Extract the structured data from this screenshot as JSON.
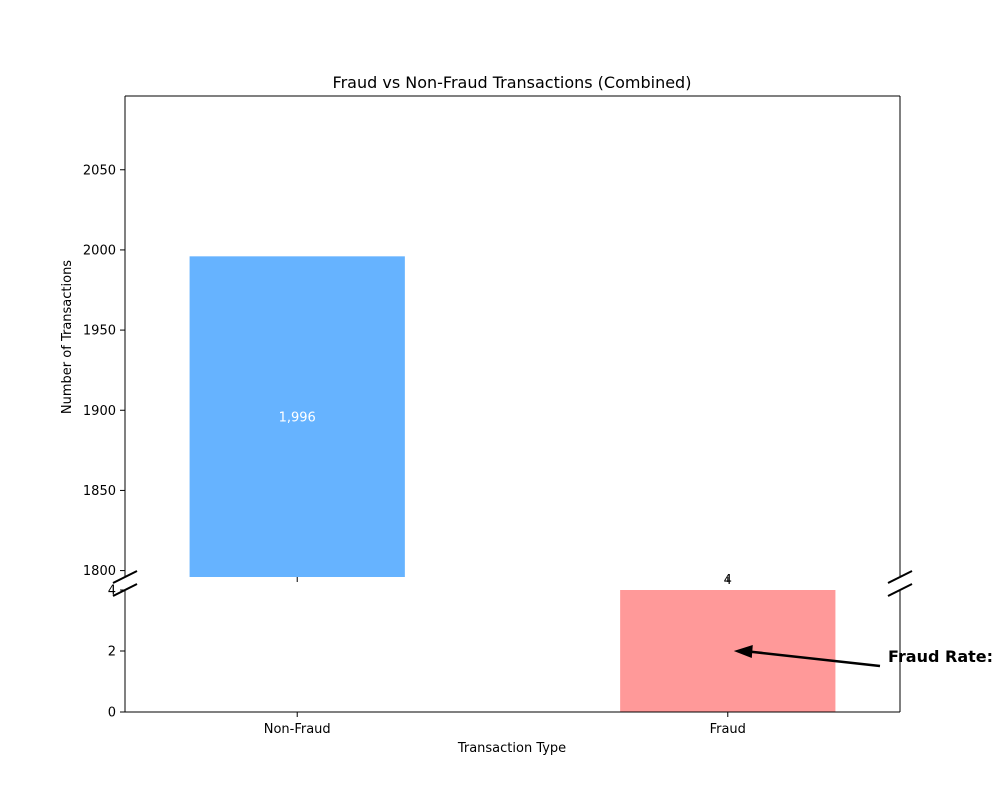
{
  "chart_data": {
    "type": "bar",
    "title": "Fraud vs Non-Fraud Transactions (Combined)",
    "xlabel": "Transaction Type",
    "ylabel": "Number of Transactions",
    "categories": [
      "Non-Fraud",
      "Fraud"
    ],
    "values": [
      1996,
      4
    ],
    "value_labels": [
      "1,996",
      "4"
    ],
    "colors": [
      "#66b3ff",
      "#ff9999"
    ],
    "broken_axis": true,
    "upper_ylim": [
      1796,
      2096
    ],
    "upper_yticks": [
      1800,
      1850,
      1900,
      1950,
      2000,
      2050
    ],
    "lower_ylim": [
      0,
      4
    ],
    "lower_yticks": [
      0,
      2,
      4
    ],
    "annotation": {
      "text": "Fraud Rate:",
      "points_to_category": "Fraud",
      "points_to_value": 2
    }
  }
}
